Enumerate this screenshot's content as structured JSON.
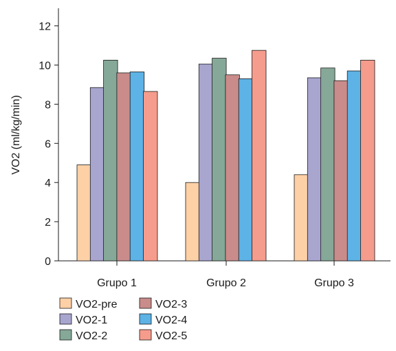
{
  "chart_data": {
    "type": "bar",
    "title": "",
    "xlabel": "",
    "ylabel": "VO2 (ml/kg/min)",
    "categories": [
      "Grupo 1",
      "Grupo 2",
      "Grupo 3"
    ],
    "ylim": [
      0,
      12.8
    ],
    "yticks": [
      0,
      2,
      4,
      6,
      8,
      10,
      12
    ],
    "grid": false,
    "legend_position": "bottom-left",
    "series": [
      {
        "name": "VO2-pre",
        "color": "#fdd0a6",
        "values": [
          4.9,
          4.0,
          4.4
        ]
      },
      {
        "name": "VO2-1",
        "color": "#a8a5cf",
        "values": [
          8.85,
          10.05,
          9.35
        ]
      },
      {
        "name": "VO2-2",
        "color": "#85a898",
        "values": [
          10.25,
          10.35,
          9.85
        ]
      },
      {
        "name": "VO2-3",
        "color": "#c98c8a",
        "values": [
          9.6,
          9.5,
          9.2
        ]
      },
      {
        "name": "VO2-4",
        "color": "#5db2e6",
        "values": [
          9.65,
          9.3,
          9.7
        ]
      },
      {
        "name": "VO2-5",
        "color": "#f59c8c",
        "values": [
          8.65,
          10.75,
          10.25
        ]
      }
    ]
  }
}
